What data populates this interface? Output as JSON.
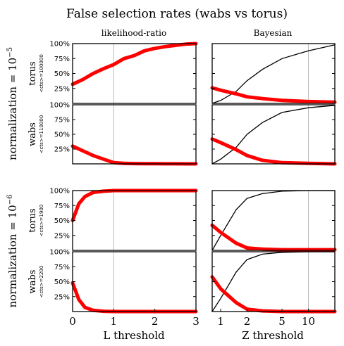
{
  "title": "False selection rates (wabs vs torus)",
  "columns": [
    "likelihood-ratio",
    "Bayesian"
  ],
  "x_labels": [
    "L threshold",
    "Z threshold"
  ],
  "groups": [
    {
      "label_prefix": "normalization = 10",
      "exponent": "−5"
    },
    {
      "label_prefix": "normalization = 10",
      "exponent": "−6"
    }
  ],
  "rows": [
    {
      "model": "torus",
      "cts": "<cts>=100000"
    },
    {
      "model": "wabs",
      "cts": "<cts>=110000"
    },
    {
      "model": "torus",
      "cts": "<cts>=1900"
    },
    {
      "model": "wabs",
      "cts": "<cts>=2200"
    }
  ],
  "y_ticks": [
    "100%",
    "75%",
    "50%",
    "25%"
  ],
  "x_ticks_left": [
    "0",
    "1",
    "2",
    "3"
  ],
  "x_ticks_right": [
    "1",
    "2",
    "5",
    "10"
  ],
  "colors": {
    "rate_line": "#ff0000",
    "cumulative_line": "#000000",
    "guide_line": "#bbbbbb"
  },
  "chart_data": [
    {
      "type": "line",
      "panel": "torus 1e-5 likelihood-ratio",
      "x": [
        0,
        0.25,
        0.5,
        0.75,
        1,
        1.25,
        1.5,
        1.75,
        2,
        2.25,
        2.5,
        2.75,
        3
      ],
      "series": [
        {
          "values": [
            32,
            40,
            50,
            58,
            65,
            75,
            80,
            88,
            92,
            95,
            97,
            99,
            100
          ]
        }
      ]
    },
    {
      "type": "line",
      "panel": "wabs 1e-5 likelihood-ratio",
      "x": [
        0,
        0.25,
        0.5,
        0.75,
        1,
        1.25,
        1.5,
        1.75,
        2,
        2.25,
        2.5,
        2.75,
        3
      ],
      "series": [
        {
          "values": [
            30,
            22,
            14,
            8,
            2,
            1,
            0.5,
            0.3,
            0.2,
            0.1,
            0.1,
            0,
            0
          ]
        }
      ]
    },
    {
      "type": "line",
      "panel": "torus 1e-6 likelihood-ratio",
      "x": [
        0,
        0.15,
        0.3,
        0.5,
        0.75,
        1,
        1.5,
        2,
        2.5,
        3
      ],
      "series": [
        {
          "values": [
            50,
            78,
            90,
            97,
            99,
            100,
            100,
            100,
            100,
            100
          ]
        }
      ]
    },
    {
      "type": "line",
      "panel": "wabs 1e-6 likelihood-ratio",
      "x": [
        0,
        0.15,
        0.3,
        0.5,
        0.75,
        1,
        1.5,
        2,
        2.5,
        3
      ],
      "series": [
        {
          "values": [
            48,
            20,
            7,
            2,
            0.5,
            0,
            0,
            0,
            0,
            0
          ]
        }
      ]
    },
    {
      "type": "line",
      "panel": "torus 1e-5 Bayesian",
      "x": [
        0.8,
        1,
        1.5,
        2,
        3,
        5,
        10,
        20
      ],
      "series": [
        {
          "values": [
            26,
            22,
            16,
            11,
            8,
            5,
            3,
            2
          ]
        },
        {
          "values": [
            0,
            5,
            20,
            38,
            57,
            75,
            88,
            98
          ]
        }
      ]
    },
    {
      "type": "line",
      "panel": "wabs 1e-5 Bayesian",
      "x": [
        0.8,
        1,
        1.5,
        2,
        3,
        5,
        10,
        20
      ],
      "series": [
        {
          "values": [
            42,
            36,
            24,
            14,
            6,
            2,
            1,
            0
          ]
        },
        {
          "values": [
            0,
            8,
            28,
            50,
            70,
            87,
            95,
            99
          ]
        }
      ]
    },
    {
      "type": "line",
      "panel": "torus 1e-6 Bayesian",
      "x": [
        0.8,
        1,
        1.5,
        2,
        3,
        5,
        10,
        20
      ],
      "series": [
        {
          "values": [
            42,
            30,
            12,
            4,
            2,
            1,
            1,
            1
          ]
        },
        {
          "values": [
            0,
            25,
            68,
            87,
            95,
            99,
            100,
            100
          ]
        }
      ]
    },
    {
      "type": "line",
      "panel": "wabs 1e-6 Bayesian",
      "x": [
        0.8,
        1,
        1.5,
        2,
        3,
        5,
        10,
        20
      ],
      "series": [
        {
          "values": [
            58,
            38,
            15,
            4,
            1,
            0,
            0,
            0
          ]
        },
        {
          "values": [
            0,
            22,
            66,
            87,
            96,
            99,
            100,
            100
          ]
        }
      ]
    }
  ]
}
